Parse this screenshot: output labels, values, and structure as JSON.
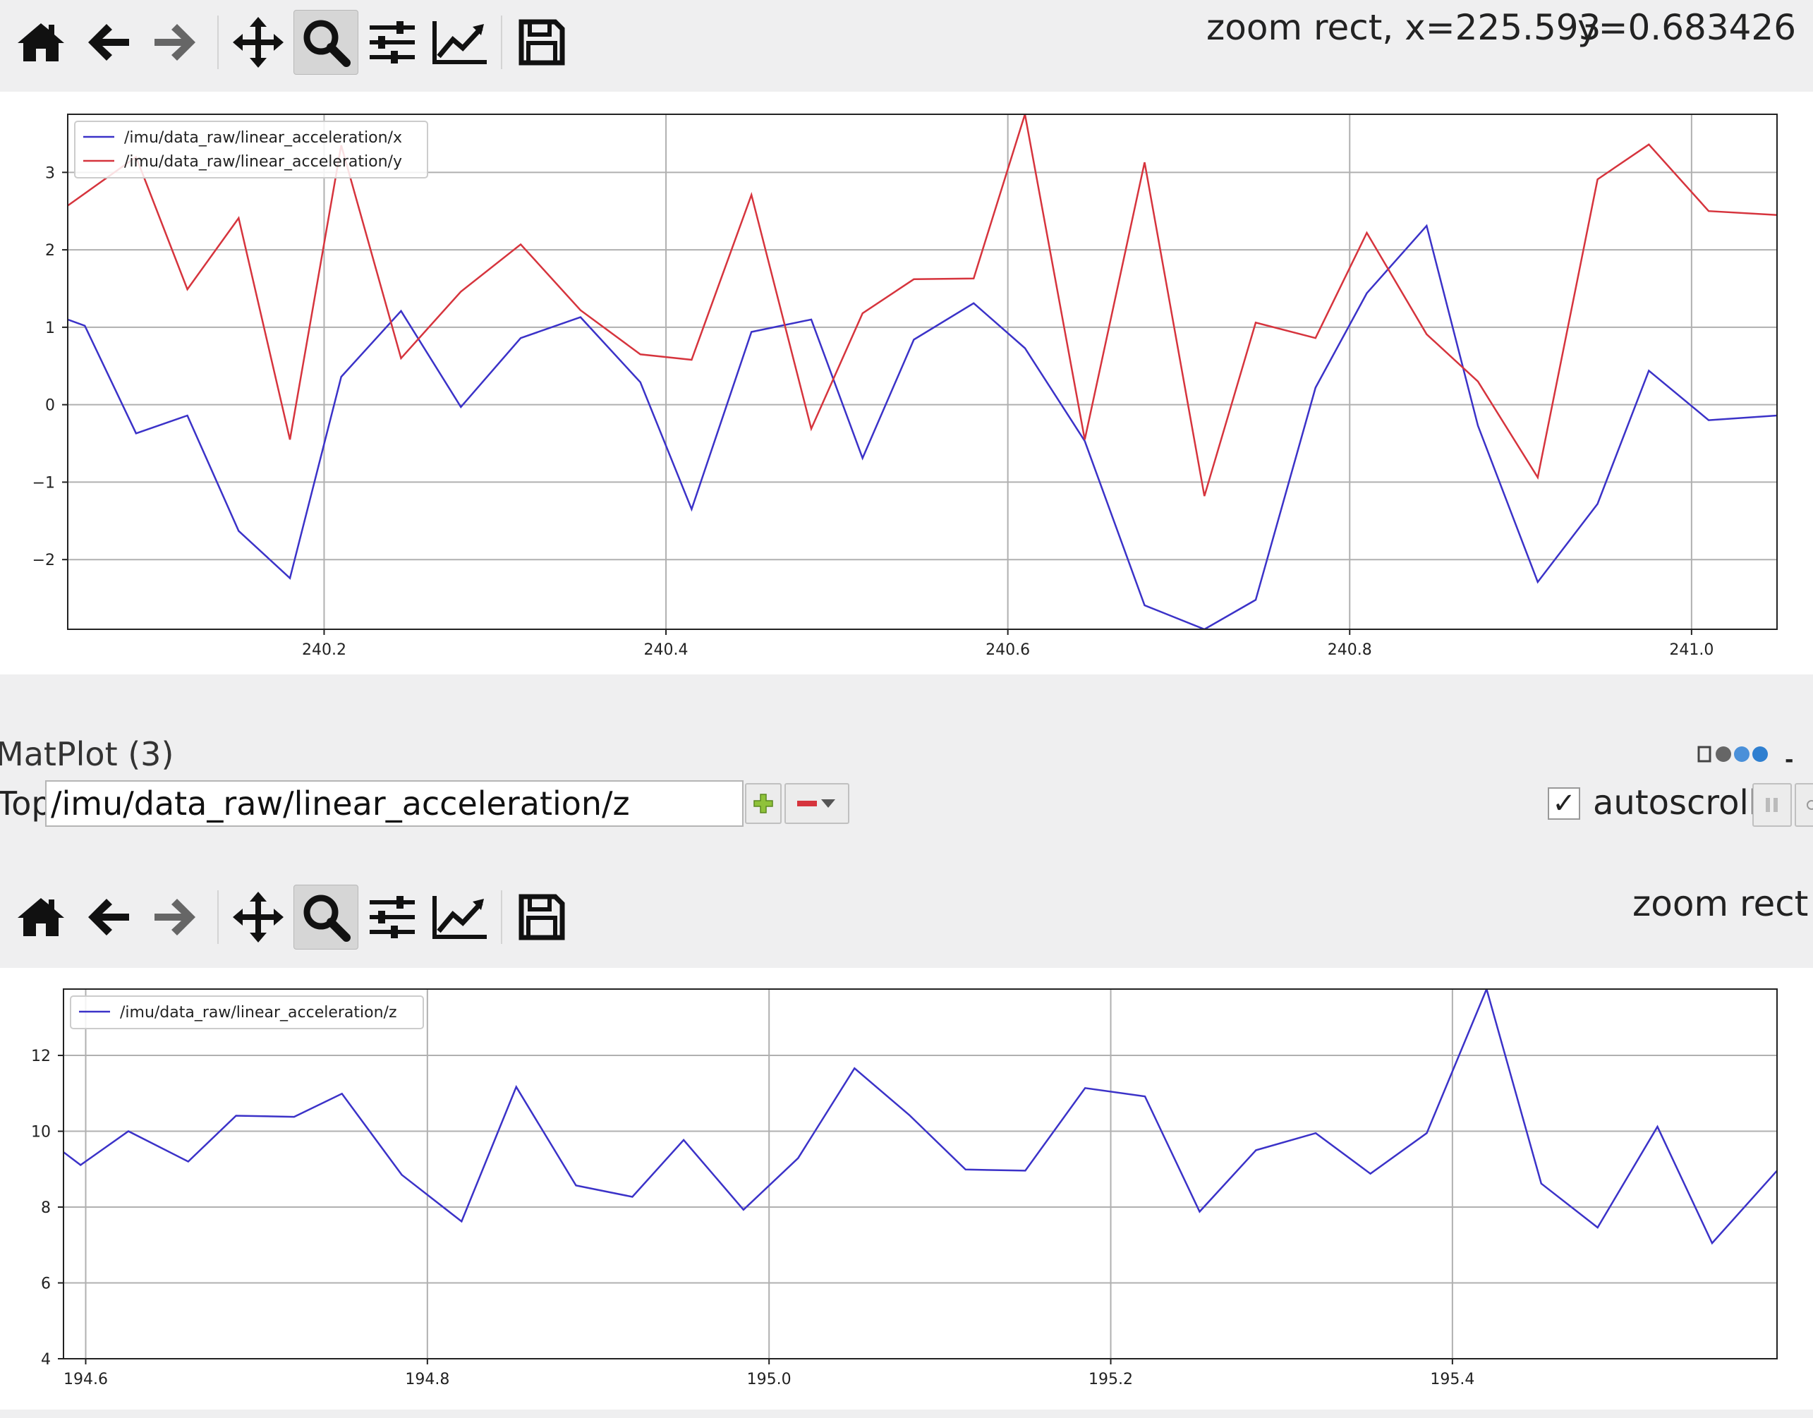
{
  "toolbar_top": {
    "buttons": [
      "home-icon",
      "back-arrow-icon",
      "forward-arrow-icon",
      "pan-icon",
      "zoom-icon",
      "configure-subplots-icon",
      "edit-axis-icon",
      "save-icon"
    ],
    "active": "zoom-icon",
    "status_x": "zoom rect, x=225.593",
    "status_y": "y=0.683426"
  },
  "toolbar_bottom": {
    "active": "zoom-icon",
    "status": "zoom rect"
  },
  "plot_panel": {
    "title": "MatPlot (3)",
    "topic_label": "Topic",
    "topic_value": "/imu/data_raw/linear_acceleration/z",
    "autoscroll_label": "autoscroll",
    "autoscroll_checked": "✓"
  },
  "colors": {
    "series_blue": "#3b32c8",
    "series_red": "#d6343d",
    "grid": "#b0b0b0"
  },
  "chart_data": [
    {
      "type": "line",
      "xlim": [
        240.05,
        241.05
      ],
      "ylim": [
        -2.9,
        3.75
      ],
      "xticks": [
        240.2,
        240.4,
        240.6,
        240.8,
        241.0
      ],
      "xtick_labels": [
        "240.2",
        "240.4",
        "240.6",
        "240.8",
        "241.0"
      ],
      "yticks": [
        -2,
        -1,
        0,
        1,
        2,
        3
      ],
      "ytick_labels": [
        "−2",
        "−1",
        "0",
        "1",
        "2",
        "3"
      ],
      "grid": true,
      "legend": "top-left",
      "series": [
        {
          "name": "/imu/data_raw/linear_acceleration/x",
          "color": "#3b32c8",
          "x": [
            240.05,
            240.06,
            240.09,
            240.12,
            240.15,
            240.18,
            240.21,
            240.245,
            240.28,
            240.315,
            240.35,
            240.385,
            240.415,
            240.45,
            240.485,
            240.515,
            240.545,
            240.58,
            240.61,
            240.645,
            240.68,
            240.715,
            240.745,
            240.78,
            240.81,
            240.845,
            240.875,
            240.91,
            240.945,
            240.975,
            241.01,
            241.05
          ],
          "y": [
            1.1,
            1.02,
            -0.37,
            -0.14,
            -1.63,
            -2.24,
            0.36,
            1.21,
            -0.03,
            0.86,
            1.13,
            0.29,
            -1.35,
            0.94,
            1.1,
            -0.69,
            0.84,
            1.31,
            0.73,
            -0.47,
            -2.59,
            -2.9,
            -2.52,
            0.22,
            1.44,
            2.31,
            -0.27,
            -2.29,
            -1.28,
            0.44,
            -0.2,
            -0.14
          ]
        },
        {
          "name": "/imu/data_raw/linear_acceleration/y",
          "color": "#d6343d",
          "x": [
            240.05,
            240.09,
            240.12,
            240.15,
            240.18,
            240.21,
            240.245,
            240.28,
            240.315,
            240.35,
            240.385,
            240.415,
            240.45,
            240.485,
            240.515,
            240.545,
            240.58,
            240.61,
            240.645,
            240.68,
            240.715,
            240.745,
            240.78,
            240.81,
            240.845,
            240.875,
            240.91,
            240.945,
            240.975,
            241.01,
            241.05
          ],
          "y": [
            2.57,
            3.2,
            1.49,
            2.41,
            -0.45,
            3.35,
            0.6,
            1.46,
            2.07,
            1.22,
            0.65,
            0.58,
            2.71,
            -0.31,
            1.18,
            1.62,
            1.63,
            3.75,
            -0.45,
            3.13,
            -1.18,
            1.06,
            0.86,
            2.22,
            0.91,
            0.3,
            -0.94,
            2.91,
            3.36,
            2.5,
            2.45
          ]
        }
      ]
    },
    {
      "type": "line",
      "xlim": [
        194.587,
        195.59
      ],
      "ylim": [
        4,
        13.75
      ],
      "xticks": [
        194.6,
        194.8,
        195.0,
        195.2,
        195.4
      ],
      "xtick_labels": [
        "194.6",
        "194.8",
        "195.0",
        "195.2",
        "195.4"
      ],
      "yticks": [
        4,
        6,
        8,
        10,
        12
      ],
      "ytick_labels": [
        "4",
        "6",
        "8",
        "10",
        "12"
      ],
      "grid": true,
      "legend": "top-left",
      "series": [
        {
          "name": "/imu/data_raw/linear_acceleration/z",
          "color": "#3b32c8",
          "x": [
            194.587,
            194.597,
            194.625,
            194.66,
            194.688,
            194.722,
            194.75,
            194.785,
            194.82,
            194.852,
            194.887,
            194.92,
            194.95,
            194.985,
            195.017,
            195.05,
            195.082,
            195.115,
            195.15,
            195.185,
            195.22,
            195.252,
            195.285,
            195.32,
            195.352,
            195.385,
            195.42,
            195.452,
            195.485,
            195.52,
            195.552,
            195.59
          ],
          "y": [
            9.45,
            9.11,
            10.0,
            9.2,
            10.41,
            10.38,
            10.99,
            8.85,
            7.62,
            11.17,
            8.57,
            8.27,
            9.77,
            7.93,
            9.29,
            11.66,
            10.43,
            8.99,
            8.96,
            11.14,
            10.92,
            7.88,
            9.5,
            9.95,
            8.88,
            9.95,
            13.75,
            8.62,
            7.46,
            10.12,
            7.05,
            8.96
          ]
        }
      ]
    }
  ]
}
